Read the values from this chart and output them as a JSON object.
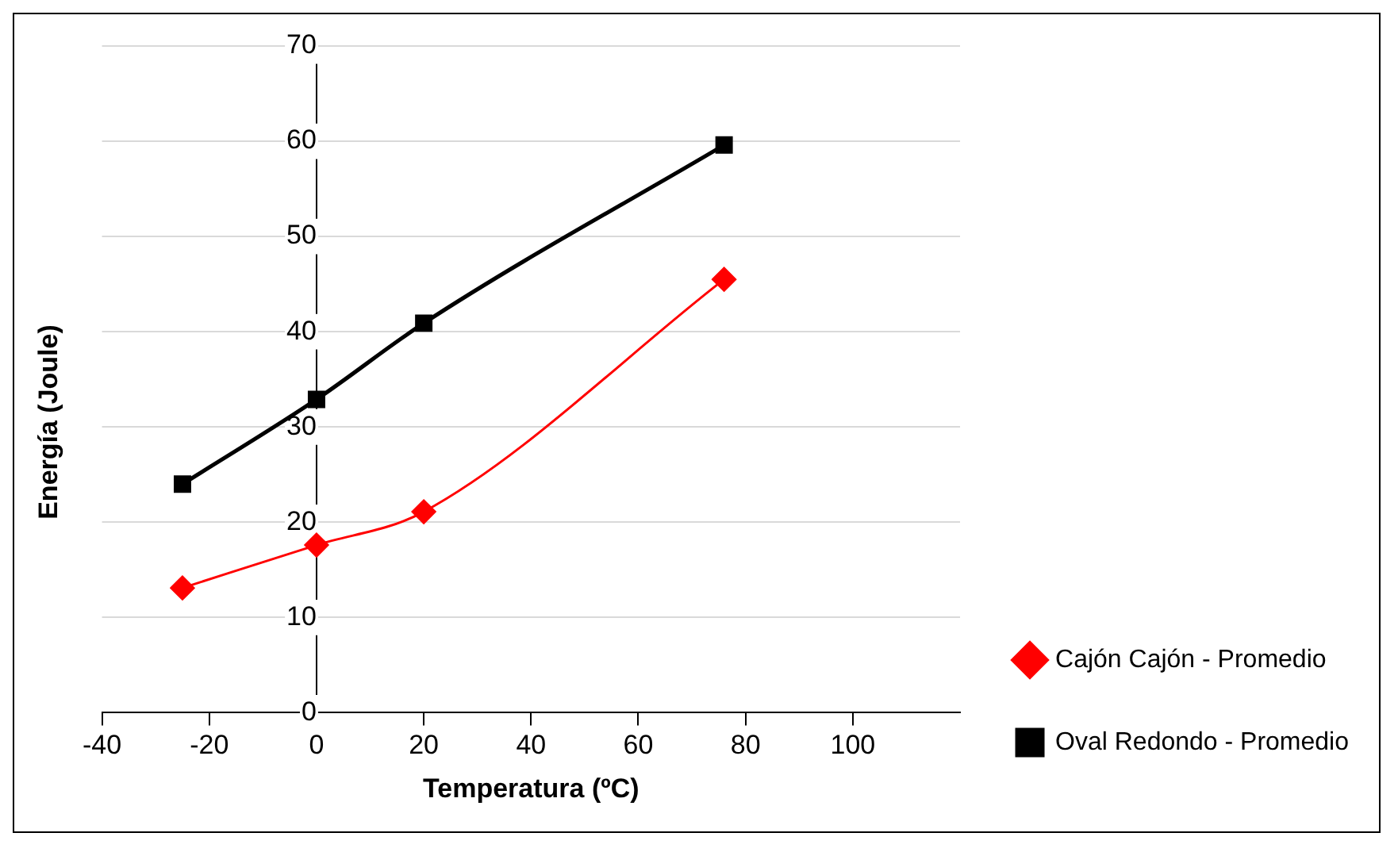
{
  "chart_data": {
    "type": "line",
    "xlabel": "Temperatura (ºC)",
    "ylabel": "Energía (Joule)",
    "x": [
      -25,
      0,
      20,
      76
    ],
    "series": [
      {
        "name": "Cajón Cajón - Promedio",
        "color": "#ff0000",
        "marker": "diamond",
        "values": [
          13.1,
          17.6,
          21.1,
          45.5
        ]
      },
      {
        "name": "Oval Redondo - Promedio",
        "color": "#000000",
        "marker": "square",
        "values": [
          24.0,
          32.9,
          40.9,
          59.6
        ]
      }
    ],
    "xlim": [
      -40,
      120
    ],
    "xticks": [
      -40,
      -20,
      0,
      20,
      40,
      60,
      80,
      100
    ],
    "ylim": [
      0,
      70
    ],
    "yticks": [
      0,
      10,
      20,
      30,
      40,
      50,
      60,
      70
    ],
    "grid": "y",
    "legend": "right",
    "line_style": "solid"
  }
}
